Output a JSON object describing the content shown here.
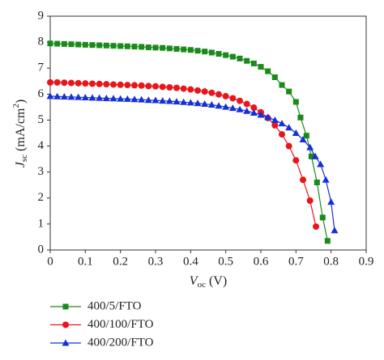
{
  "chart_data": {
    "type": "line",
    "xlabel": [
      "V",
      "oc",
      " (V)"
    ],
    "ylabel": [
      "J",
      "sc",
      " (mA/cm",
      "2",
      ")"
    ],
    "xlim": [
      0,
      0.9
    ],
    "xticks": [
      0,
      0.1,
      0.2,
      0.3,
      0.4,
      0.5,
      0.6,
      0.7,
      0.8,
      0.9
    ],
    "ylim": [
      0,
      9
    ],
    "yticks": [
      0,
      1,
      2,
      3,
      4,
      5,
      6,
      7,
      8,
      9
    ],
    "series": [
      {
        "name": "400/5/FTO",
        "color": "#1a8a1a",
        "marker": "square",
        "x": [
          0,
          0.02,
          0.04,
          0.06,
          0.08,
          0.1,
          0.12,
          0.14,
          0.16,
          0.18,
          0.2,
          0.22,
          0.24,
          0.26,
          0.28,
          0.3,
          0.32,
          0.34,
          0.36,
          0.38,
          0.4,
          0.42,
          0.44,
          0.46,
          0.48,
          0.5,
          0.52,
          0.54,
          0.56,
          0.58,
          0.6,
          0.62,
          0.64,
          0.66,
          0.68,
          0.7,
          0.713,
          0.73,
          0.744,
          0.76,
          0.776,
          0.79
        ],
        "values": [
          7.95,
          7.94,
          7.93,
          7.92,
          7.91,
          7.9,
          7.89,
          7.88,
          7.87,
          7.86,
          7.85,
          7.84,
          7.83,
          7.82,
          7.8,
          7.79,
          7.78,
          7.76,
          7.74,
          7.72,
          7.7,
          7.67,
          7.64,
          7.6,
          7.55,
          7.5,
          7.44,
          7.37,
          7.28,
          7.18,
          7.05,
          6.88,
          6.65,
          6.35,
          6.1,
          5.7,
          5.1,
          4.4,
          3.6,
          2.6,
          1.25,
          0.35
        ]
      },
      {
        "name": "400/100/FTO",
        "color": "#e8161b",
        "marker": "circle",
        "x": [
          0,
          0.02,
          0.04,
          0.06,
          0.08,
          0.1,
          0.12,
          0.14,
          0.16,
          0.18,
          0.2,
          0.22,
          0.24,
          0.26,
          0.28,
          0.3,
          0.32,
          0.34,
          0.36,
          0.38,
          0.4,
          0.42,
          0.44,
          0.46,
          0.48,
          0.5,
          0.52,
          0.54,
          0.56,
          0.58,
          0.6,
          0.62,
          0.64,
          0.66,
          0.68,
          0.7,
          0.72,
          0.74,
          0.757
        ],
        "values": [
          6.45,
          6.45,
          6.44,
          6.43,
          6.42,
          6.41,
          6.4,
          6.39,
          6.38,
          6.37,
          6.36,
          6.35,
          6.34,
          6.33,
          6.31,
          6.3,
          6.28,
          6.26,
          6.24,
          6.21,
          6.18,
          6.14,
          6.1,
          6.05,
          5.99,
          5.92,
          5.84,
          5.74,
          5.62,
          5.48,
          5.3,
          5.08,
          4.8,
          4.45,
          4.0,
          3.45,
          2.7,
          1.9,
          0.9
        ]
      },
      {
        "name": "400/200/FTO",
        "color": "#1530d8",
        "marker": "triangle",
        "x": [
          0,
          0.02,
          0.04,
          0.06,
          0.08,
          0.1,
          0.12,
          0.14,
          0.16,
          0.18,
          0.2,
          0.22,
          0.24,
          0.26,
          0.28,
          0.3,
          0.32,
          0.34,
          0.36,
          0.38,
          0.4,
          0.42,
          0.44,
          0.46,
          0.48,
          0.5,
          0.52,
          0.54,
          0.56,
          0.58,
          0.6,
          0.62,
          0.64,
          0.66,
          0.68,
          0.7,
          0.72,
          0.74,
          0.755,
          0.77,
          0.785,
          0.8,
          0.81
        ],
        "values": [
          5.92,
          5.91,
          5.9,
          5.89,
          5.88,
          5.87,
          5.86,
          5.85,
          5.84,
          5.83,
          5.82,
          5.81,
          5.8,
          5.79,
          5.77,
          5.76,
          5.74,
          5.73,
          5.71,
          5.69,
          5.67,
          5.65,
          5.62,
          5.59,
          5.55,
          5.51,
          5.46,
          5.41,
          5.35,
          5.28,
          5.2,
          5.11,
          5.0,
          4.87,
          4.71,
          4.5,
          4.25,
          3.95,
          3.6,
          3.3,
          2.7,
          1.85,
          0.75
        ]
      }
    ]
  }
}
